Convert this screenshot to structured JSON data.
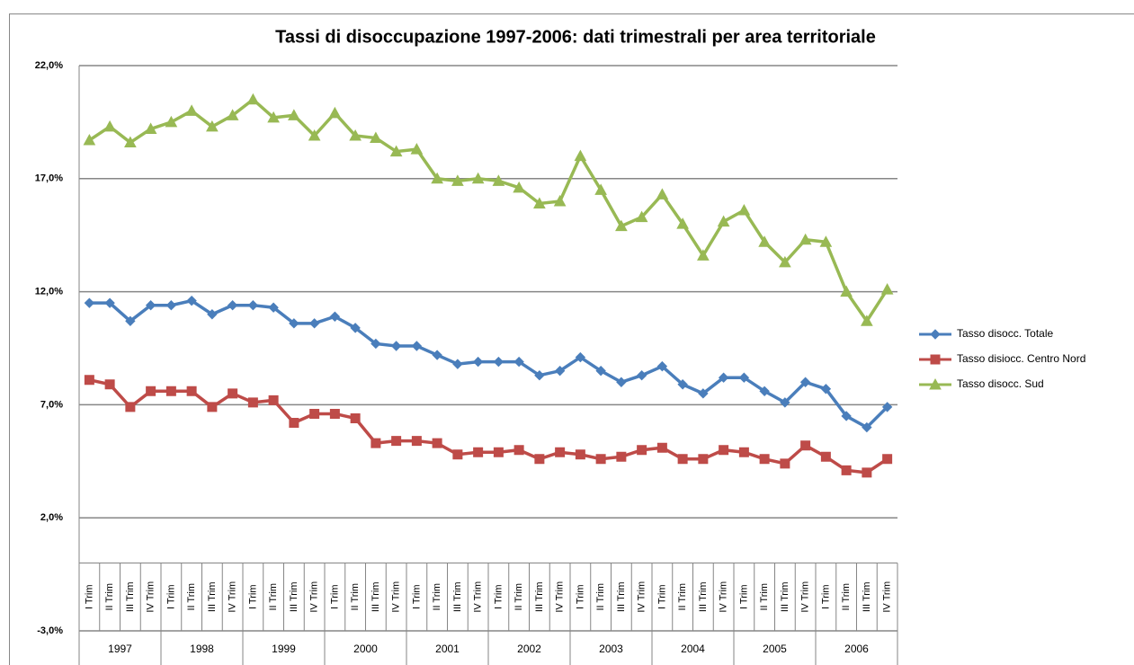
{
  "chart_data": {
    "type": "line",
    "title": "Tassi di disoccupazione 1997-2006: dati trimestrali per area territoriale",
    "categories": [
      "I Trim",
      "II Trim",
      "III Trim",
      "IV Trim",
      "I Trim",
      "II Trim",
      "III Trim",
      "IV Trim",
      "I Trim",
      "II Trim",
      "III Trim",
      "IV Trim",
      "I Trim",
      "II Trim",
      "III Trim",
      "IV Trim",
      "I Trim",
      "II Trim",
      "III Trim",
      "IV Trim",
      "I Trim",
      "II Trim",
      "III Trim",
      "IV Trim",
      "I Trim",
      "II Trim",
      "III Trim",
      "IV Trim",
      "I Trim",
      "II Trim",
      "III Trim",
      "IV Trim",
      "I Trim",
      "II Trim",
      "III Trim",
      "IV Trim",
      "I Trim",
      "II Trim",
      "III Trim",
      "IV Trim"
    ],
    "years": [
      "1997",
      "1998",
      "1999",
      "2000",
      "2001",
      "2002",
      "2003",
      "2004",
      "2005",
      "2006"
    ],
    "series": [
      {
        "name": "Tasso disocc. Totale",
        "color": "#4a7ebb",
        "marker": "diamond",
        "values": [
          11.5,
          11.5,
          10.7,
          11.4,
          11.4,
          11.6,
          11.0,
          11.4,
          11.4,
          11.3,
          10.6,
          10.6,
          10.9,
          10.4,
          9.7,
          9.6,
          9.6,
          9.2,
          8.8,
          8.9,
          8.9,
          8.9,
          8.3,
          8.5,
          9.1,
          8.5,
          8.0,
          8.3,
          8.7,
          7.9,
          7.5,
          8.2,
          8.2,
          7.6,
          7.1,
          8.0,
          7.7,
          6.5,
          6.0,
          6.9
        ]
      },
      {
        "name": "Tasso disiocc. Centro Nord",
        "color": "#be4b48",
        "marker": "square",
        "values": [
          8.1,
          7.9,
          6.9,
          7.6,
          7.6,
          7.6,
          6.9,
          7.5,
          7.1,
          7.2,
          6.2,
          6.6,
          6.6,
          6.4,
          5.3,
          5.4,
          5.4,
          5.3,
          4.8,
          4.9,
          4.9,
          5.0,
          4.6,
          4.9,
          4.8,
          4.6,
          4.7,
          5.0,
          5.1,
          4.6,
          4.6,
          5.0,
          4.9,
          4.6,
          4.4,
          5.2,
          4.7,
          4.1,
          4.0,
          4.6
        ]
      },
      {
        "name": "Tasso disocc. Sud",
        "color": "#98b954",
        "marker": "triangle",
        "values": [
          18.7,
          19.3,
          18.6,
          19.2,
          19.5,
          20.0,
          19.3,
          19.8,
          20.5,
          19.7,
          19.8,
          18.9,
          19.9,
          18.9,
          18.8,
          18.2,
          18.3,
          17.0,
          16.9,
          17.0,
          16.9,
          16.6,
          15.9,
          16.0,
          18.0,
          16.5,
          14.9,
          15.3,
          16.3,
          15.0,
          13.6,
          15.1,
          15.6,
          14.2,
          13.3,
          14.3,
          14.2,
          12.0,
          10.7,
          12.1
        ]
      }
    ],
    "ylim": [
      -3,
      22
    ],
    "yticks": [
      {
        "value": -3,
        "label": "-3,0%"
      },
      {
        "value": 2,
        "label": "2,0%"
      },
      {
        "value": 7,
        "label": "7,0%"
      },
      {
        "value": 12,
        "label": "12,0%"
      },
      {
        "value": 17,
        "label": "17,0%"
      },
      {
        "value": 22,
        "label": "22,0%"
      }
    ],
    "grid": true,
    "legend": "right"
  }
}
